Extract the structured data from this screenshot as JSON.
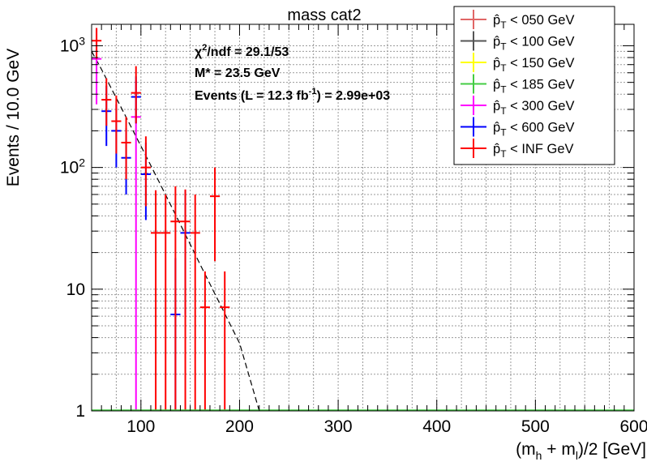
{
  "chart_data": {
    "type": "scatter",
    "title": "mass cat2",
    "xlabel": "(m_h + m_l)/2 [GeV]",
    "ylabel": "Events / 10.0 GeV",
    "xlim": [
      50,
      600
    ],
    "ylim": [
      1,
      1500
    ],
    "y_scale": "log",
    "x_ticks": [
      100,
      200,
      300,
      400,
      500,
      600
    ],
    "x_tick_labels": [
      "100",
      "200",
      "300",
      "400",
      "500",
      "600"
    ],
    "y_ticks": [
      1,
      10,
      100,
      1000
    ],
    "y_tick_labels": [
      "1",
      "10",
      "10^2",
      "10^3"
    ],
    "grid": true,
    "legend_position": "top-right",
    "annotations": [
      {
        "text": "χ²/ndf = 29.1/53"
      },
      {
        "text": "M* = 23.5 GeV"
      },
      {
        "text": "Events (L = 12.3 fb⁻¹) = 2.99e+03"
      }
    ],
    "fit_curve": {
      "style": "dashed",
      "color": "#000000",
      "x": [
        50,
        60,
        80,
        100,
        120,
        140,
        160,
        180,
        200,
        220
      ],
      "y": [
        900,
        640,
        310,
        150,
        72,
        34,
        16,
        7.6,
        3.6,
        1.0
      ]
    },
    "series": [
      {
        "name": "p_T < 050 GeV",
        "color": "#e06666",
        "points": []
      },
      {
        "name": "p_T < 100 GeV",
        "color": "#555555",
        "points": []
      },
      {
        "name": "p_T < 150 GeV",
        "color": "#ffff00",
        "points": []
      },
      {
        "name": "p_T < 185 GeV",
        "color": "#44cc44",
        "points": []
      },
      {
        "name": "p_T < 300 GeV",
        "color": "#ff00ff",
        "points": [
          {
            "x": 55,
            "y": 780,
            "ylo": 330,
            "yhi": 1400
          },
          {
            "x": 95,
            "y": 260,
            "ylo": 1,
            "yhi": 520
          }
        ]
      },
      {
        "name": "p_T < 600 GeV",
        "color": "#0000ff",
        "points": [
          {
            "x": 65,
            "y": 290,
            "ylo": 150,
            "yhi": 470
          },
          {
            "x": 75,
            "y": 200,
            "ylo": 100,
            "yhi": 330
          },
          {
            "x": 85,
            "y": 120,
            "ylo": 60,
            "yhi": 210
          },
          {
            "x": 95,
            "y": 380,
            "ylo": 230,
            "yhi": 560
          },
          {
            "x": 105,
            "y": 88,
            "ylo": 37,
            "yhi": 160
          },
          {
            "x": 145,
            "y": 29,
            "ylo": 6.2,
            "yhi": 65
          },
          {
            "x": 135,
            "y": 6.2,
            "ylo": 1,
            "yhi": 18
          }
        ]
      },
      {
        "name": "p_T < INF GeV",
        "color": "#ff0000",
        "points": [
          {
            "x": 55,
            "y": 1100,
            "ylo": 780,
            "yhi": 1400
          },
          {
            "x": 65,
            "y": 360,
            "ylo": 220,
            "yhi": 540
          },
          {
            "x": 75,
            "y": 240,
            "ylo": 130,
            "yhi": 390
          },
          {
            "x": 85,
            "y": 160,
            "ylo": 80,
            "yhi": 260
          },
          {
            "x": 95,
            "y": 410,
            "ylo": 230,
            "yhi": 680
          },
          {
            "x": 105,
            "y": 100,
            "ylo": 48,
            "yhi": 180
          },
          {
            "x": 115,
            "y": 29,
            "ylo": 1,
            "yhi": 65
          },
          {
            "x": 125,
            "y": 29,
            "ylo": 1,
            "yhi": 60
          },
          {
            "x": 135,
            "y": 36,
            "ylo": 1,
            "yhi": 70
          },
          {
            "x": 145,
            "y": 36,
            "ylo": 1,
            "yhi": 66
          },
          {
            "x": 155,
            "y": 29,
            "ylo": 1,
            "yhi": 60
          },
          {
            "x": 165,
            "y": 7.1,
            "ylo": 1,
            "yhi": 14
          },
          {
            "x": 175,
            "y": 58,
            "ylo": 17,
            "yhi": 100
          },
          {
            "x": 185,
            "y": 7.1,
            "ylo": 1,
            "yhi": 14
          }
        ]
      }
    ]
  }
}
